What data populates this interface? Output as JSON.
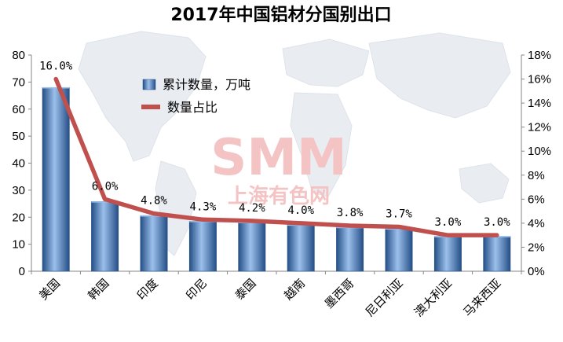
{
  "chart_data": {
    "type": "bar",
    "title": "2017年中国铝材分国别出口",
    "categories": [
      "美国",
      "韩国",
      "印度",
      "印尼",
      "泰国",
      "越南",
      "墨西哥",
      "尼日利亚",
      "澳大利亚",
      "马来西亚"
    ],
    "series": [
      {
        "name": "累计数量，万吨",
        "type": "bar",
        "axis": "left",
        "values": [
          68,
          25.8,
          20.6,
          18.5,
          18.1,
          17.2,
          16.3,
          15.8,
          12.9,
          12.9
        ]
      },
      {
        "name": "数量占比",
        "type": "line",
        "axis": "right",
        "values": [
          16.0,
          6.0,
          4.8,
          4.3,
          4.2,
          4.0,
          3.8,
          3.7,
          3.0,
          3.0
        ],
        "labels": [
          "16.0%",
          "6.0%",
          "4.8%",
          "4.3%",
          "4.2%",
          "4.0%",
          "3.8%",
          "3.7%",
          "3.0%",
          "3.0%"
        ]
      }
    ],
    "y_left": {
      "min": 0,
      "max": 80,
      "step": 10,
      "ticks": [
        "0",
        "10",
        "20",
        "30",
        "40",
        "50",
        "60",
        "70",
        "80"
      ]
    },
    "y_right": {
      "min": 0,
      "max": 18,
      "step": 2,
      "ticks": [
        "0%",
        "2%",
        "4%",
        "6%",
        "8%",
        "10%",
        "12%",
        "14%",
        "16%",
        "18%"
      ]
    },
    "grid": false,
    "legend_position": "top-center",
    "colors": {
      "bar": "#4a7fc4",
      "bar_dark": "#244f86",
      "bar_light": "#9cc0ec",
      "line": "#c0504d"
    }
  },
  "watermark": {
    "logo": "SMM",
    "text": "上海有色网"
  }
}
